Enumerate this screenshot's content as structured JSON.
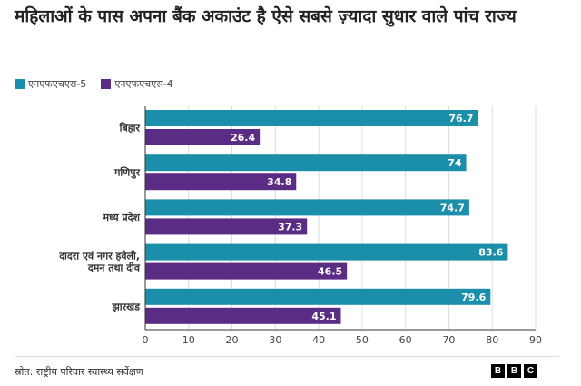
{
  "title": "महिलाओं के पास अपना बैंक अकाउंट है ऐसे सबसे ज़्यादा सुधार वाले पांच राज्य",
  "legend": [
    {
      "label": "एनएफएचएस-5",
      "color": "#1b8eaa"
    },
    {
      "label": "एनएफएचएस-4",
      "color": "#5b2c83"
    }
  ],
  "source": "स्रोत: राष्ट्रीय परिवार स्वास्थ्य सर्वेक्षण",
  "logo": [
    "B",
    "B",
    "C"
  ],
  "chart_data": {
    "type": "bar",
    "orientation": "horizontal",
    "categories": [
      [
        "बिहार"
      ],
      [
        "मणिपुर"
      ],
      [
        "मध्य प्रदेश"
      ],
      [
        "दादरा एवं नगर हवेली,",
        "दमन तथा दीव"
      ],
      [
        "झारखंड"
      ]
    ],
    "series": [
      {
        "name": "एनएफएचएस-5",
        "color": "#1b8eaa",
        "values": [
          76.7,
          74,
          74.7,
          83.6,
          79.6
        ],
        "labels": [
          "76.7",
          "74",
          "74.7",
          "83.6",
          "79.6"
        ]
      },
      {
        "name": "एनएफएचएस-4",
        "color": "#5b2c83",
        "values": [
          26.4,
          34.8,
          37.3,
          46.5,
          45.1
        ],
        "labels": [
          "26.4",
          "34.8",
          "37.3",
          "46.5",
          "45.1"
        ]
      }
    ],
    "xlim": [
      0,
      90
    ],
    "xticks": [
      0,
      10,
      20,
      30,
      40,
      50,
      60,
      70,
      80,
      90
    ],
    "grid": true
  }
}
